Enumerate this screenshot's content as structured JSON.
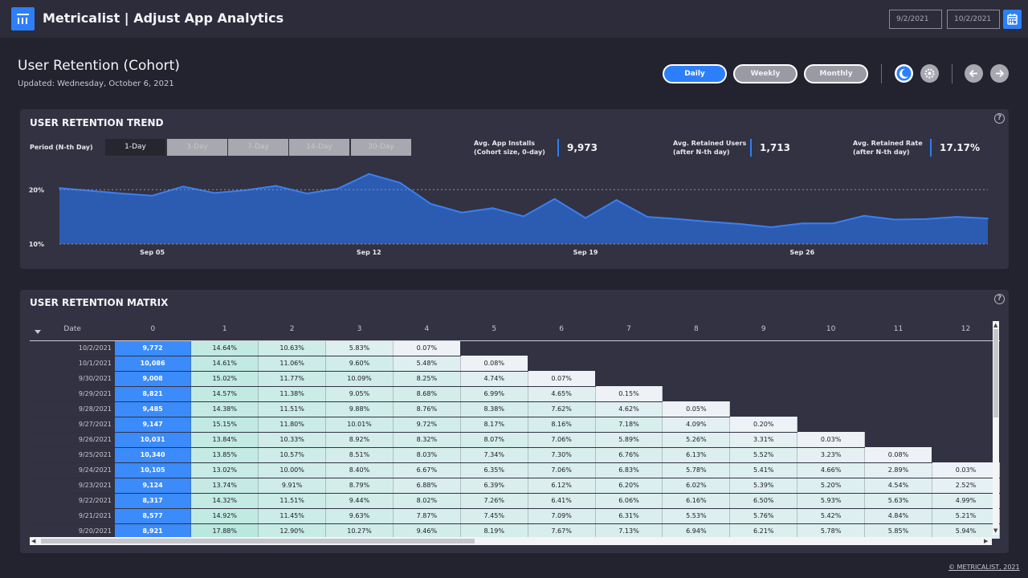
{
  "app": {
    "title": "Metricalist | Adjust App Analytics"
  },
  "date_range": {
    "start": "9/2/2021",
    "end": "10/2/2021"
  },
  "page": {
    "title": "User Retention (Cohort)",
    "updated": "Updated: Wednesday, October 6, 2021"
  },
  "granularity": {
    "options": [
      "Daily",
      "Weekly",
      "Monthly"
    ],
    "selected": "Daily"
  },
  "icons": {
    "logo": "chart-logo-icon",
    "calendar": "calendar-icon",
    "dark_mode": "moon-icon",
    "light_mode": "gear-icon",
    "prev": "arrow-left-icon",
    "next": "arrow-right-icon",
    "help": "help-icon"
  },
  "colors": {
    "accent": "#2d7ff9",
    "background": "#23232f",
    "panel": "#323242",
    "area_fill": "#2c5fb8",
    "area_line": "#3a7ff0"
  },
  "trend": {
    "title": "USER RETENTION TREND",
    "period_label": "Period (N-th Day)",
    "periods": [
      "1-Day",
      "3-Day",
      "7-Day",
      "14-Day",
      "30-Day"
    ],
    "selected_period": "1-Day",
    "kpis": [
      {
        "label_line1": "Avg. App Installs",
        "label_line2": "(Cohort size, 0-day)",
        "value": "9,973"
      },
      {
        "label_line1": "Avg. Retained Users",
        "label_line2": "(after N-th day)",
        "value": "1,713"
      },
      {
        "label_line1": "Avg. Retained Rate",
        "label_line2": "(after N-th day)",
        "value": "17.17%"
      }
    ]
  },
  "chart_data": {
    "type": "area",
    "title": "",
    "xlabel": "",
    "ylabel": "",
    "x": [
      "9/2/2021",
      "9/3/2021",
      "9/4/2021",
      "9/5/2021",
      "9/6/2021",
      "9/7/2021",
      "9/8/2021",
      "9/9/2021",
      "9/10/2021",
      "9/11/2021",
      "9/12/2021",
      "9/13/2021",
      "9/14/2021",
      "9/15/2021",
      "9/16/2021",
      "9/17/2021",
      "9/18/2021",
      "9/19/2021",
      "9/20/2021",
      "9/21/2021",
      "9/22/2021",
      "9/23/2021",
      "9/24/2021",
      "9/25/2021",
      "9/26/2021",
      "9/27/2021",
      "9/28/2021",
      "9/29/2021",
      "9/30/2021",
      "10/1/2021",
      "10/2/2021"
    ],
    "x_ticks": [
      "Sep 05",
      "Sep 12",
      "Sep 19",
      "Sep 26"
    ],
    "x_tick_dates": [
      "9/5/2021",
      "9/12/2021",
      "9/19/2021",
      "9/26/2021"
    ],
    "y_ticks": [
      "10%",
      "20%"
    ],
    "y_tick_values": [
      10,
      20
    ],
    "ylim": [
      10,
      23
    ],
    "grid": "dashed at 10% and 20%",
    "series": [
      {
        "values": [
          20.3,
          19.8,
          19.3,
          18.9,
          20.6,
          19.4,
          19.9,
          20.7,
          19.3,
          20.2,
          22.9,
          21.3,
          17.4,
          15.8,
          16.6,
          15.1,
          18.3,
          14.8,
          18.1,
          15.0,
          14.6,
          14.1,
          13.7,
          13.1,
          13.8,
          13.8,
          15.2,
          14.5,
          14.6,
          15.0,
          14.7
        ]
      }
    ]
  },
  "matrix": {
    "title": "USER RETENTION MATRIX",
    "date_header": "Date",
    "columns": [
      "0",
      "1",
      "2",
      "3",
      "4",
      "5",
      "6",
      "7",
      "8",
      "9",
      "10",
      "11",
      "12"
    ],
    "rows": [
      {
        "date": "10/2/2021",
        "cells": [
          "9,772",
          "14.64%",
          "10.63%",
          "5.83%",
          "0.07%"
        ]
      },
      {
        "date": "10/1/2021",
        "cells": [
          "10,086",
          "14.61%",
          "11.06%",
          "9.60%",
          "5.48%",
          "0.08%"
        ]
      },
      {
        "date": "9/30/2021",
        "cells": [
          "9,008",
          "15.02%",
          "11.77%",
          "10.09%",
          "8.25%",
          "4.74%",
          "0.07%"
        ]
      },
      {
        "date": "9/29/2021",
        "cells": [
          "8,821",
          "14.57%",
          "11.38%",
          "9.05%",
          "8.68%",
          "6.99%",
          "4.65%",
          "0.15%"
        ]
      },
      {
        "date": "9/28/2021",
        "cells": [
          "9,485",
          "14.38%",
          "11.51%",
          "9.88%",
          "8.76%",
          "8.38%",
          "7.62%",
          "4.62%",
          "0.05%"
        ]
      },
      {
        "date": "9/27/2021",
        "cells": [
          "9,147",
          "15.15%",
          "11.80%",
          "10.01%",
          "9.72%",
          "8.17%",
          "8.16%",
          "7.18%",
          "4.09%",
          "0.20%"
        ]
      },
      {
        "date": "9/26/2021",
        "cells": [
          "10,031",
          "13.84%",
          "10.33%",
          "8.92%",
          "8.32%",
          "8.07%",
          "7.06%",
          "5.89%",
          "5.26%",
          "3.31%",
          "0.03%"
        ]
      },
      {
        "date": "9/25/2021",
        "cells": [
          "10,340",
          "13.85%",
          "10.57%",
          "8.51%",
          "8.03%",
          "7.34%",
          "7.30%",
          "6.76%",
          "6.13%",
          "5.52%",
          "3.23%",
          "0.08%"
        ]
      },
      {
        "date": "9/24/2021",
        "cells": [
          "10,105",
          "13.02%",
          "10.00%",
          "8.40%",
          "6.67%",
          "6.35%",
          "7.06%",
          "6.83%",
          "5.78%",
          "5.41%",
          "4.66%",
          "2.89%",
          "0.03%"
        ]
      },
      {
        "date": "9/23/2021",
        "cells": [
          "9,124",
          "13.74%",
          "9.91%",
          "8.79%",
          "6.88%",
          "6.39%",
          "6.12%",
          "6.20%",
          "6.02%",
          "5.39%",
          "5.20%",
          "4.54%",
          "2.52%"
        ]
      },
      {
        "date": "9/22/2021",
        "cells": [
          "8,317",
          "14.32%",
          "11.51%",
          "9.44%",
          "8.02%",
          "7.26%",
          "6.41%",
          "6.06%",
          "6.16%",
          "6.50%",
          "5.93%",
          "5.63%",
          "4.99%"
        ]
      },
      {
        "date": "9/21/2021",
        "cells": [
          "8,577",
          "14.92%",
          "11.45%",
          "9.63%",
          "7.87%",
          "7.45%",
          "7.09%",
          "6.31%",
          "5.53%",
          "5.76%",
          "5.42%",
          "4.84%",
          "5.21%"
        ]
      },
      {
        "date": "9/20/2021",
        "cells": [
          "8,921",
          "17.88%",
          "12.90%",
          "10.27%",
          "9.46%",
          "8.19%",
          "7.67%",
          "7.13%",
          "6.94%",
          "6.21%",
          "5.78%",
          "5.85%",
          "5.94%"
        ]
      }
    ]
  },
  "footer": {
    "copyright": "© METRICALIST, 2021"
  }
}
